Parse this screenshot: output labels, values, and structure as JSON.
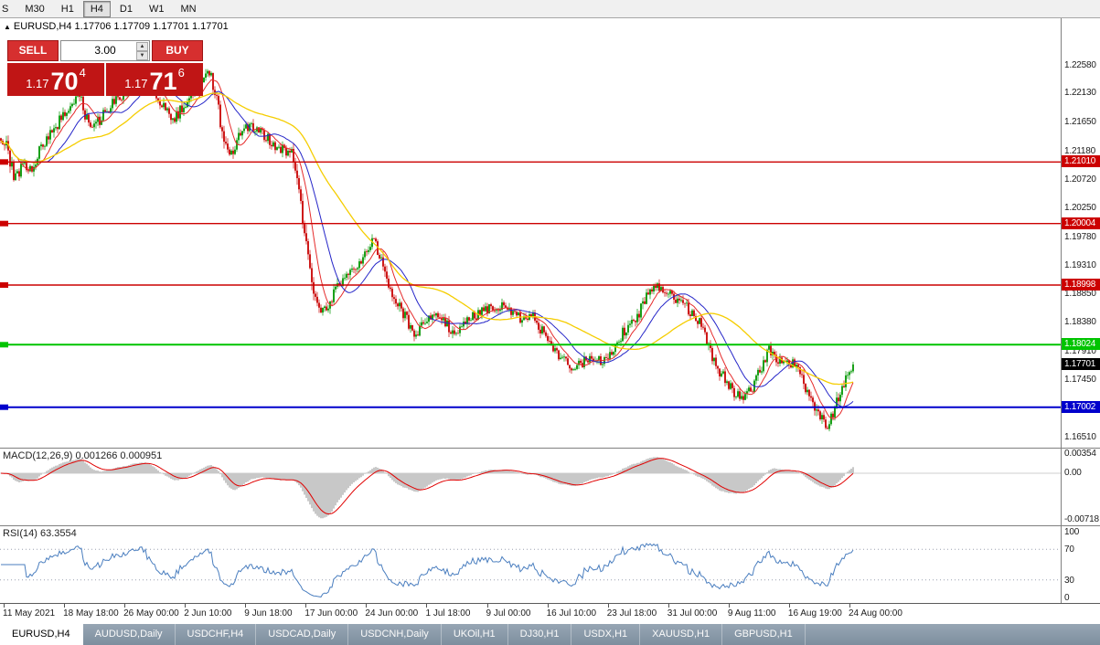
{
  "toolbar": {
    "timeframes": [
      "S",
      "M30",
      "H1",
      "H4",
      "D1",
      "W1",
      "MN"
    ],
    "active_timeframe": "H4"
  },
  "chart_header": {
    "ohlc_line": "EURUSD,H4 1.17706 1.17709 1.17701 1.17701",
    "collapse_arrow": "▲"
  },
  "trade_panel": {
    "sell_label": "SELL",
    "buy_label": "BUY",
    "volume": "3.00",
    "bid_small": "1.17",
    "bid_big": "70",
    "bid_sup": "4",
    "ask_small": "1.17",
    "ask_big": "71",
    "ask_sup": "6",
    "button_color": "#d62f2f",
    "quote_color": "#c01515"
  },
  "indicators": {
    "macd_label": "MACD(12,26,9) 0.001266 0.000951",
    "rsi_label": "RSI(14) 63.3554"
  },
  "axes": {
    "price_labels": [
      "1.22580",
      "1.22130",
      "1.21650",
      "1.21180",
      "1.20720",
      "1.20250",
      "1.19780",
      "1.19310",
      "1.18850",
      "1.18380",
      "1.17910",
      "1.17450",
      "1.16510"
    ],
    "macd_labels": [
      "0.00354",
      "0.00",
      "-0.00718"
    ],
    "rsi_labels": [
      "100",
      "70",
      "30",
      "0"
    ],
    "time_labels": [
      "11 May 2021",
      "18 May 18:00",
      "26 May 00:00",
      "2 Jun 10:00",
      "9 Jun 18:00",
      "17 Jun 00:00",
      "24 Jun 00:00",
      "1 Jul 18:00",
      "9 Jul 00:00",
      "16 Jul 10:00",
      "23 Jul 18:00",
      "31 Jul 00:00",
      "9 Aug 11:00",
      "16 Aug 19:00",
      "24 Aug 00:00"
    ]
  },
  "hlines": [
    {
      "price": 1.2101,
      "label": "1.21010",
      "color": "#cc0000",
      "line_width": 1.4
    },
    {
      "price": 1.20004,
      "label": "1.20004",
      "color": "#cc0000",
      "line_width": 1.4
    },
    {
      "price": 1.18998,
      "label": "1.18998",
      "color": "#cc0000",
      "line_width": 1.4
    },
    {
      "price": 1.18024,
      "label": "1.18024",
      "color": "#00c400",
      "line_width": 2
    },
    {
      "price": 1.17002,
      "label": "1.17002",
      "color": "#0000cc",
      "line_width": 2
    }
  ],
  "current_price": {
    "label": "1.17701",
    "price": 1.17701,
    "tag_color": "#000000"
  },
  "tabs": [
    "EURUSD,H4",
    "AUDUSD,Daily",
    "USDCHF,H4",
    "USDCAD,Daily",
    "USDCNH,Daily",
    "UKOil,H1",
    "DJ30,H1",
    "USDX,H1",
    "XAUUSD,H1",
    "GBPUSD,H1"
  ],
  "active_tab": "EURUSD,H4",
  "chart_data": {
    "type": "candlestick",
    "symbol": "EURUSD",
    "timeframe": "H4",
    "visible_price_range": [
      1.1634,
      1.2336
    ],
    "bars": 467,
    "seed": 42,
    "noise": 0.0015,
    "wick": 0.0007,
    "last_price": 1.17701,
    "bull_color": "#009600",
    "bear_color": "#c80000",
    "price_anchors": [
      [
        0.0,
        1.214
      ],
      [
        0.008,
        1.212
      ],
      [
        0.016,
        1.2072
      ],
      [
        0.026,
        1.2098
      ],
      [
        0.036,
        1.2088
      ],
      [
        0.05,
        1.2132
      ],
      [
        0.074,
        1.2178
      ],
      [
        0.092,
        1.2208
      ],
      [
        0.106,
        1.2152
      ],
      [
        0.128,
        1.2192
      ],
      [
        0.148,
        1.2218
      ],
      [
        0.166,
        1.2248
      ],
      [
        0.186,
        1.2202
      ],
      [
        0.202,
        1.2168
      ],
      [
        0.218,
        1.2202
      ],
      [
        0.246,
        1.2252
      ],
      [
        0.262,
        1.2135
      ],
      [
        0.272,
        1.2108
      ],
      [
        0.284,
        1.2162
      ],
      [
        0.302,
        1.2152
      ],
      [
        0.322,
        1.2128
      ],
      [
        0.342,
        1.2112
      ],
      [
        0.352,
        1.203
      ],
      [
        0.361,
        1.1945
      ],
      [
        0.369,
        1.1878
      ],
      [
        0.379,
        1.1856
      ],
      [
        0.396,
        1.1898
      ],
      [
        0.412,
        1.1922
      ],
      [
        0.428,
        1.1952
      ],
      [
        0.438,
        1.1976
      ],
      [
        0.452,
        1.1908
      ],
      [
        0.468,
        1.1862
      ],
      [
        0.487,
        1.1818
      ],
      [
        0.5,
        1.1845
      ],
      [
        0.515,
        1.1852
      ],
      [
        0.53,
        1.1818
      ],
      [
        0.545,
        1.1842
      ],
      [
        0.57,
        1.186
      ],
      [
        0.59,
        1.1866
      ],
      [
        0.612,
        1.1842
      ],
      [
        0.625,
        1.1848
      ],
      [
        0.641,
        1.1812
      ],
      [
        0.658,
        1.178
      ],
      [
        0.672,
        1.1762
      ],
      [
        0.688,
        1.1778
      ],
      [
        0.711,
        1.1775
      ],
      [
        0.728,
        1.1818
      ],
      [
        0.748,
        1.1852
      ],
      [
        0.765,
        1.1898
      ],
      [
        0.778,
        1.189
      ],
      [
        0.8,
        1.1872
      ],
      [
        0.82,
        1.1836
      ],
      [
        0.84,
        1.1766
      ],
      [
        0.853,
        1.1738
      ],
      [
        0.868,
        1.1713
      ],
      [
        0.88,
        1.1728
      ],
      [
        0.893,
        1.1768
      ],
      [
        0.901,
        1.1795
      ],
      [
        0.913,
        1.1775
      ],
      [
        0.93,
        1.177
      ],
      [
        0.945,
        1.1732
      ],
      [
        0.958,
        1.1692
      ],
      [
        0.97,
        1.1667
      ],
      [
        0.981,
        1.1713
      ],
      [
        0.99,
        1.1746
      ],
      [
        1.0,
        1.177
      ]
    ],
    "ma": [
      {
        "period": 10,
        "color": "#e52b2b",
        "width": 1
      },
      {
        "period": 22,
        "color": "#2525c8",
        "width": 1
      },
      {
        "period": 55,
        "color": "#f5cd00",
        "width": 1.3
      }
    ],
    "macd": {
      "fast": 12,
      "slow": 26,
      "signal": 9,
      "histogram_color": "#c8c8c8",
      "signal_color": "#e00000",
      "range": [
        -0.00718,
        0.00354
      ]
    },
    "rsi": {
      "period": 14,
      "color": "#4a7ebf",
      "levels": [
        70,
        30
      ],
      "current": 63.3554
    }
  }
}
